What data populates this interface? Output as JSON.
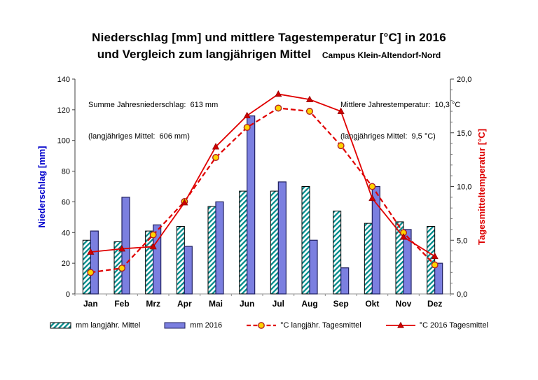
{
  "title": {
    "line1": "Niederschlag [mm] und mittlere Tagestemperatur [°C] in 2016",
    "line2": "und Vergleich zum langjährigen Mittel",
    "subtitle": "Campus Klein-Altendorf-Nord"
  },
  "annotations": {
    "precip_total": "Summe Jahresniederschlag:  613 mm",
    "precip_longterm": "(langjähriges Mittel:  606 mm)",
    "temp_mean": "Mittlere Jahrestemperatur:  10,3 °C",
    "temp_longterm": "(langjähriges Mittel:  9,5 °C)"
  },
  "chart_data": {
    "type": "bar",
    "subtype": "combo-bar-line-dual-axis",
    "categories": [
      "Jan",
      "Feb",
      "Mrz",
      "Apr",
      "Mai",
      "Jun",
      "Jul",
      "Aug",
      "Sep",
      "Okt",
      "Nov",
      "Dez"
    ],
    "bar_series": [
      {
        "name": "mm langjähr. Mittel",
        "style": "hatched",
        "values": [
          35,
          34,
          41,
          44,
          57,
          67,
          67,
          70,
          54,
          46,
          47,
          44
        ],
        "fill_color": "#ffffff",
        "stripe_color": "#008B8B",
        "border_color": "#000000"
      },
      {
        "name": "mm 2016",
        "style": "solid",
        "values": [
          41,
          63,
          45,
          31,
          60,
          116,
          73,
          35,
          17,
          70,
          42,
          20
        ],
        "fill_color": "#7B7FE0",
        "border_color": "#202060"
      }
    ],
    "line_series": [
      {
        "name": "°C langjähr. Tagesmittel",
        "style": "dashed",
        "marker": "circle",
        "values": [
          2.0,
          2.4,
          5.5,
          8.6,
          12.7,
          15.5,
          17.3,
          17.0,
          13.8,
          10.0,
          5.7,
          2.7
        ],
        "line_color": "#E00000",
        "marker_fill": "#FFD400",
        "marker_stroke": "#B22222"
      },
      {
        "name": "°C 2016 Tagesmittel",
        "style": "solid",
        "marker": "triangle",
        "values": [
          3.9,
          4.2,
          4.4,
          8.5,
          13.7,
          16.6,
          18.6,
          18.1,
          17.0,
          8.9,
          5.3,
          3.5
        ],
        "line_color": "#E00000",
        "marker_fill": "#D00000",
        "marker_stroke": "#900000"
      }
    ],
    "left_axis": {
      "title": "Niederschlag [mm]",
      "min": 0,
      "max": 140,
      "step": 20,
      "color": "#0000CC",
      "tick_labels": [
        "0",
        "20",
        "40",
        "60",
        "80",
        "100",
        "120",
        "140"
      ]
    },
    "right_axis": {
      "title": "Tagesmitteltemperatur [°C]",
      "min": 0,
      "max": 20,
      "step": 5,
      "minor_step": 1,
      "color": "#DD0000",
      "tick_labels": [
        "0,0",
        "5,0",
        "10,0",
        "15,0",
        "20,0"
      ]
    },
    "grid": false,
    "legend_position": "bottom"
  }
}
